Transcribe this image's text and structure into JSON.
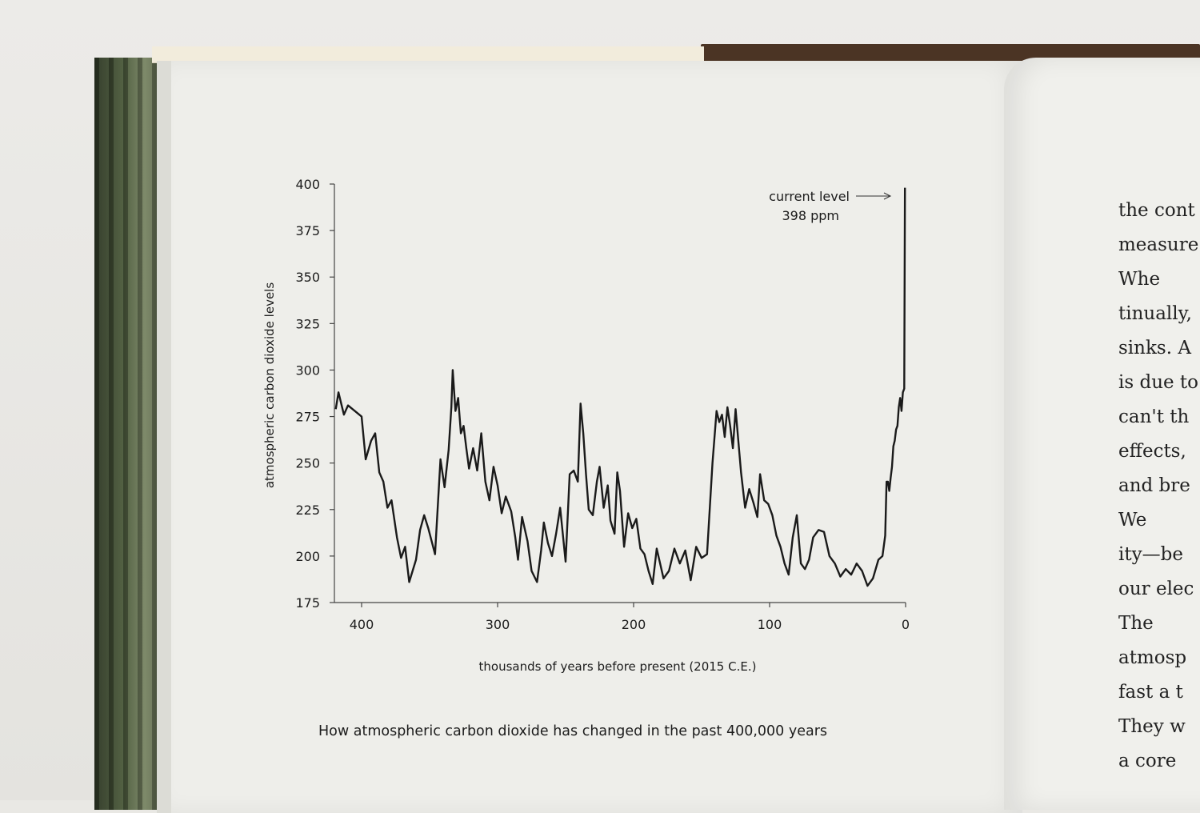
{
  "chart_data": {
    "type": "line",
    "title": "",
    "xlabel": "thousands of years before present (2015 C.E.)",
    "ylabel": "atmospheric carbon dioxide levels",
    "xlim": [
      420,
      0
    ],
    "ylim": [
      175,
      400
    ],
    "x_ticks": [
      400,
      300,
      200,
      100,
      0
    ],
    "y_ticks": [
      400,
      375,
      350,
      325,
      300,
      275,
      250,
      225,
      200,
      175
    ],
    "grid": false,
    "annotation": {
      "line1": "current level",
      "line2": "398 ppm"
    },
    "series": [
      {
        "x": [
          419,
          417,
          415,
          413,
          410,
          405,
          400,
          397,
          393,
          390,
          387,
          384,
          381,
          378,
          374,
          371,
          368,
          365,
          360,
          357,
          354,
          351,
          346,
          342,
          339,
          336,
          334,
          333,
          331,
          329,
          327,
          325,
          323,
          321,
          318,
          315,
          312,
          309,
          306,
          303,
          300,
          297,
          294,
          290,
          287,
          285,
          282,
          278,
          275,
          271,
          268,
          266,
          263,
          260,
          257,
          254,
          250,
          247,
          244,
          241,
          239,
          237,
          236,
          235,
          233,
          230,
          227,
          225,
          222,
          219,
          217,
          214,
          212,
          210,
          207,
          204,
          201,
          198,
          195,
          192,
          189,
          186,
          183,
          178,
          174,
          170,
          166,
          162,
          158,
          154,
          150,
          146,
          142,
          139,
          137,
          135,
          133,
          131,
          129,
          127,
          125,
          123,
          121,
          118,
          115,
          112,
          109,
          107,
          104,
          101,
          98,
          95,
          92,
          89,
          86,
          83,
          80,
          77,
          74,
          71,
          68,
          64,
          60,
          56,
          52,
          48,
          44,
          40,
          36,
          32,
          28,
          24,
          20,
          17,
          15,
          14,
          13,
          12,
          11,
          10,
          9,
          8,
          7,
          6,
          5,
          4,
          3,
          2,
          1,
          0.5
        ],
        "values": [
          279,
          288,
          282,
          276,
          281,
          278,
          275,
          252,
          262,
          266,
          245,
          240,
          226,
          230,
          210,
          199,
          205,
          186,
          198,
          214,
          222,
          215,
          201,
          252,
          237,
          257,
          280,
          300,
          278,
          285,
          266,
          270,
          258,
          247,
          258,
          246,
          266,
          240,
          230,
          248,
          238,
          223,
          232,
          224,
          210,
          198,
          221,
          208,
          192,
          186,
          203,
          218,
          207,
          200,
          212,
          226,
          197,
          244,
          246,
          240,
          282,
          266,
          255,
          244,
          225,
          222,
          240,
          248,
          226,
          238,
          219,
          212,
          245,
          235,
          205,
          223,
          215,
          220,
          204,
          201,
          192,
          185,
          204,
          188,
          192,
          204,
          196,
          203,
          187,
          205,
          199,
          201,
          250,
          278,
          272,
          276,
          264,
          280,
          270,
          258,
          279,
          262,
          245,
          226,
          236,
          229,
          221,
          244,
          230,
          228,
          222,
          211,
          205,
          196,
          190,
          210,
          222,
          196,
          193,
          198,
          210,
          214,
          213,
          200,
          196,
          189,
          193,
          190,
          196,
          192,
          184,
          188,
          198,
          200,
          211,
          240,
          240,
          235,
          242,
          248,
          259,
          262,
          268,
          270,
          280,
          285,
          278,
          288,
          290,
          398
        ]
      }
    ]
  },
  "caption": "How atmospheric carbon dioxide has changed in the past 400,000 years",
  "right_page_lines": [
    "the cont",
    "measure",
    "Whe",
    "tinually,",
    "sinks. A",
    "is due to",
    "can't th",
    "effects,",
    "and bre",
    "We",
    "ity—be",
    "our elec",
    "The",
    "atmosp",
    "fast a t",
    "They w",
    "a core"
  ]
}
